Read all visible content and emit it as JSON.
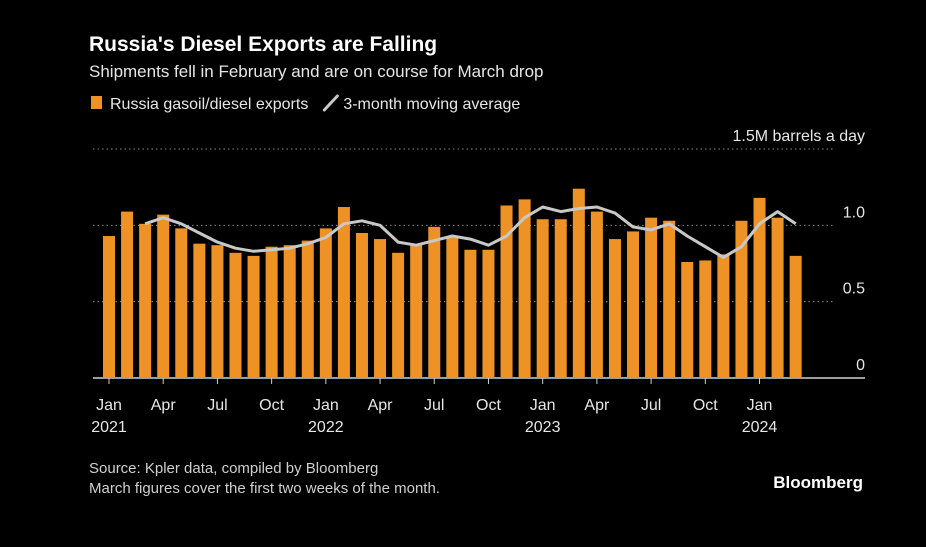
{
  "chart_data": {
    "type": "bar_line",
    "title": "Russia's Diesel Exports are Falling",
    "subtitle": "Shipments fell in February and are on course for March drop",
    "categories": [
      "Jan",
      null,
      null,
      "Apr",
      null,
      null,
      "Jul",
      null,
      null,
      "Oct",
      null,
      null,
      "Jan",
      null,
      null,
      "Apr",
      null,
      null,
      "Jul",
      null,
      null,
      "Oct",
      null,
      null,
      "Jan",
      null,
      null,
      "Apr",
      null,
      null,
      "Jul",
      null,
      null,
      "Oct",
      null,
      null,
      "Jan",
      null,
      null
    ],
    "years": [
      "2021",
      null,
      null,
      null,
      null,
      null,
      null,
      null,
      null,
      null,
      null,
      null,
      "2022",
      null,
      null,
      null,
      null,
      null,
      null,
      null,
      null,
      null,
      null,
      null,
      "2023",
      null,
      null,
      null,
      null,
      null,
      null,
      null,
      null,
      null,
      null,
      null,
      "2024",
      null,
      null
    ],
    "series": [
      {
        "name": "Russia gasoil/diesel exports",
        "kind": "bar",
        "color": "#ef9226",
        "values": [
          0.93,
          1.09,
          1.01,
          1.07,
          0.98,
          0.88,
          0.87,
          0.82,
          0.8,
          0.86,
          0.87,
          0.9,
          0.98,
          1.12,
          0.95,
          0.91,
          0.82,
          0.88,
          0.99,
          0.93,
          0.84,
          0.84,
          1.13,
          1.17,
          1.04,
          1.04,
          1.24,
          1.09,
          0.91,
          0.96,
          1.05,
          1.03,
          0.76,
          0.77,
          0.81,
          1.03,
          1.18,
          1.05,
          0.8
        ]
      },
      {
        "name": "3-month moving average",
        "kind": "line",
        "color": "#c8c8c8",
        "values": [
          null,
          null,
          1.01,
          1.05,
          1.01,
          0.95,
          0.89,
          0.85,
          0.83,
          0.84,
          0.85,
          0.88,
          0.92,
          1.01,
          1.03,
          1.0,
          0.89,
          0.87,
          0.9,
          0.93,
          0.91,
          0.87,
          0.93,
          1.05,
          1.12,
          1.09,
          1.11,
          1.12,
          1.08,
          0.99,
          0.97,
          1.01,
          0.93,
          0.86,
          0.79,
          0.86,
          1.01,
          1.09,
          1.01
        ]
      }
    ],
    "ylim": [
      0,
      1.5
    ],
    "yticks": [
      0,
      0.5,
      {
        "value": 1,
        "label": "1.0"
      },
      {
        "value": 1.5,
        "label": "1.5M barrels a day"
      }
    ],
    "grid": true,
    "source": "Source: Kpler data, compiled by Bloomberg",
    "note": "March figures cover the first two weeks of the month.",
    "brand": "Bloomberg"
  }
}
